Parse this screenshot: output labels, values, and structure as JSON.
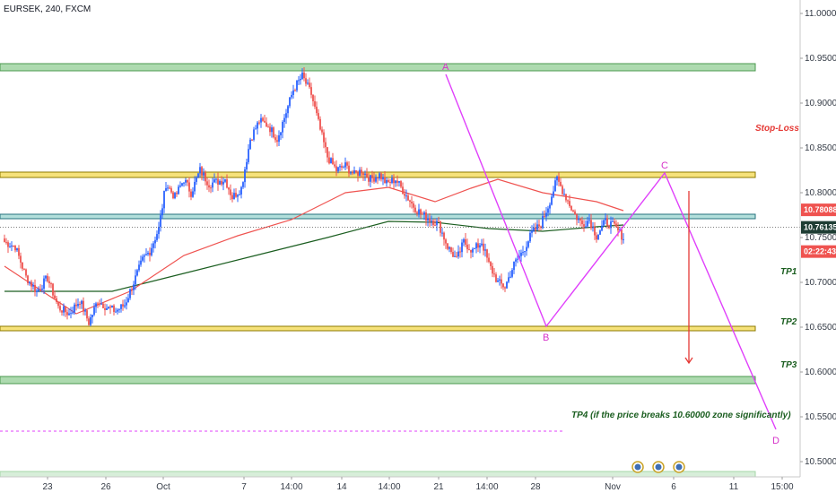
{
  "symbol_title": "EURSEK, 240, FXCM",
  "colors": {
    "up": "#2962ff",
    "down": "#ef5350",
    "ema_fast": "#ef5350",
    "ema_slow": "#1b5e20",
    "abcd": "#e040fb",
    "green_zone_fill": "#a5d6a7",
    "green_zone_stroke": "#388e3c",
    "yellow_zone_fill": "#f6e27a",
    "yellow_zone_stroke": "#8d7a00",
    "blue_zone_fill": "#b2dfdb",
    "blue_zone_stroke": "#26727e",
    "tp4_line": "#e040fb",
    "tag_red": "#ef5350",
    "tag_dark": "#1e3d34",
    "sl_arrow": "#e53935"
  },
  "chart_data": {
    "type": "candlestick",
    "title": "EURSEK, 240, FXCM",
    "ylim": [
      10.465,
      11.015
    ],
    "y_ticks": [
      "11.00000",
      "10.95000",
      "10.90000",
      "10.85000",
      "10.80000",
      "10.75000",
      "10.70000",
      "10.65000",
      "10.60000",
      "10.55000",
      "10.50000"
    ],
    "x_ticks": [
      "23",
      "26",
      "Oct",
      "7",
      "14:00",
      "14",
      "14:00",
      "21",
      "14:00",
      "28",
      "Nov",
      "6",
      "11",
      "15:00"
    ],
    "anchors": [
      [
        0,
        10.745
      ],
      [
        6,
        10.74
      ],
      [
        12,
        10.706
      ],
      [
        18,
        10.69
      ],
      [
        24,
        10.705
      ],
      [
        30,
        10.672
      ],
      [
        36,
        10.665
      ],
      [
        42,
        10.68
      ],
      [
        47,
        10.655
      ],
      [
        52,
        10.68
      ],
      [
        57,
        10.672
      ],
      [
        62,
        10.668
      ],
      [
        67,
        10.675
      ],
      [
        72,
        10.7
      ],
      [
        77,
        10.725
      ],
      [
        81,
        10.735
      ],
      [
        86,
        10.76
      ],
      [
        90,
        10.81
      ],
      [
        95,
        10.795
      ],
      [
        100,
        10.815
      ],
      [
        104,
        10.8
      ],
      [
        109,
        10.825
      ],
      [
        114,
        10.81
      ],
      [
        118,
        10.812
      ],
      [
        123,
        10.815
      ],
      [
        127,
        10.795
      ],
      [
        132,
        10.805
      ],
      [
        137,
        10.86
      ],
      [
        142,
        10.88
      ],
      [
        147,
        10.875
      ],
      [
        152,
        10.86
      ],
      [
        157,
        10.89
      ],
      [
        161,
        10.915
      ],
      [
        166,
        10.93
      ],
      [
        171,
        10.91
      ],
      [
        176,
        10.87
      ],
      [
        180,
        10.84
      ],
      [
        185,
        10.825
      ],
      [
        190,
        10.83
      ],
      [
        195,
        10.82
      ],
      [
        199,
        10.825
      ],
      [
        204,
        10.815
      ],
      [
        209,
        10.82
      ],
      [
        213,
        10.81
      ],
      [
        218,
        10.815
      ],
      [
        223,
        10.8
      ],
      [
        228,
        10.785
      ],
      [
        233,
        10.775
      ],
      [
        238,
        10.77
      ],
      [
        242,
        10.765
      ],
      [
        247,
        10.74
      ],
      [
        252,
        10.725
      ],
      [
        256,
        10.745
      ],
      [
        261,
        10.735
      ],
      [
        266,
        10.745
      ],
      [
        270,
        10.72
      ],
      [
        275,
        10.7
      ],
      [
        279,
        10.695
      ],
      [
        284,
        10.72
      ],
      [
        289,
        10.735
      ],
      [
        294,
        10.755
      ],
      [
        299,
        10.765
      ],
      [
        303,
        10.785
      ],
      [
        308,
        10.815
      ],
      [
        313,
        10.795
      ],
      [
        318,
        10.775
      ],
      [
        322,
        10.765
      ],
      [
        326,
        10.77
      ],
      [
        330,
        10.752
      ],
      [
        335,
        10.768
      ],
      [
        340,
        10.762
      ],
      [
        345,
        10.75
      ]
    ],
    "ema_fast": [
      [
        0,
        10.718
      ],
      [
        40,
        10.665
      ],
      [
        70,
        10.69
      ],
      [
        100,
        10.73
      ],
      [
        130,
        10.752
      ],
      [
        160,
        10.77
      ],
      [
        190,
        10.8
      ],
      [
        214,
        10.806
      ],
      [
        240,
        10.79
      ],
      [
        260,
        10.805
      ],
      [
        275,
        10.815
      ],
      [
        300,
        10.8
      ],
      [
        330,
        10.79
      ],
      [
        345,
        10.78
      ]
    ],
    "ema_slow": [
      [
        0,
        10.69
      ],
      [
        60,
        10.69
      ],
      [
        100,
        10.71
      ],
      [
        140,
        10.73
      ],
      [
        180,
        10.75
      ],
      [
        214,
        10.768
      ],
      [
        240,
        10.767
      ],
      [
        270,
        10.76
      ],
      [
        300,
        10.757
      ],
      [
        330,
        10.762
      ],
      [
        345,
        10.764
      ]
    ],
    "zones": [
      {
        "kind": "green",
        "low": 10.936,
        "high": 10.944
      },
      {
        "kind": "yellow",
        "low": 10.817,
        "high": 10.823
      },
      {
        "kind": "blue",
        "low": 10.771,
        "high": 10.776
      },
      {
        "kind": "yellow",
        "low": 10.646,
        "high": 10.651
      },
      {
        "kind": "green",
        "low": 10.587,
        "high": 10.595
      },
      {
        "kind": "greenlight",
        "low": 10.481,
        "high": 10.489
      }
    ],
    "abcd": [
      {
        "label": "A",
        "t": 246,
        "p": 10.932
      },
      {
        "label": "B",
        "t": 302,
        "p": 10.651
      },
      {
        "label": "C",
        "t": 368,
        "p": 10.822
      },
      {
        "label": "D",
        "t": 430,
        "p": 10.536
      }
    ],
    "current_price": "10.76135",
    "price_tag_1": "10.78088",
    "countdown": "02:22:43",
    "tp_labels": [
      {
        "text": "TP1",
        "price": 10.712
      },
      {
        "text": "TP2",
        "price": 10.656
      },
      {
        "text": "TP3",
        "price": 10.608
      }
    ],
    "tp4_text": "TP4 (if the price breaks 10.60000 zone significantly)",
    "tp4_price": 10.534,
    "stop_loss_text": "Stop-Loss",
    "stop_loss_price": 10.858
  }
}
